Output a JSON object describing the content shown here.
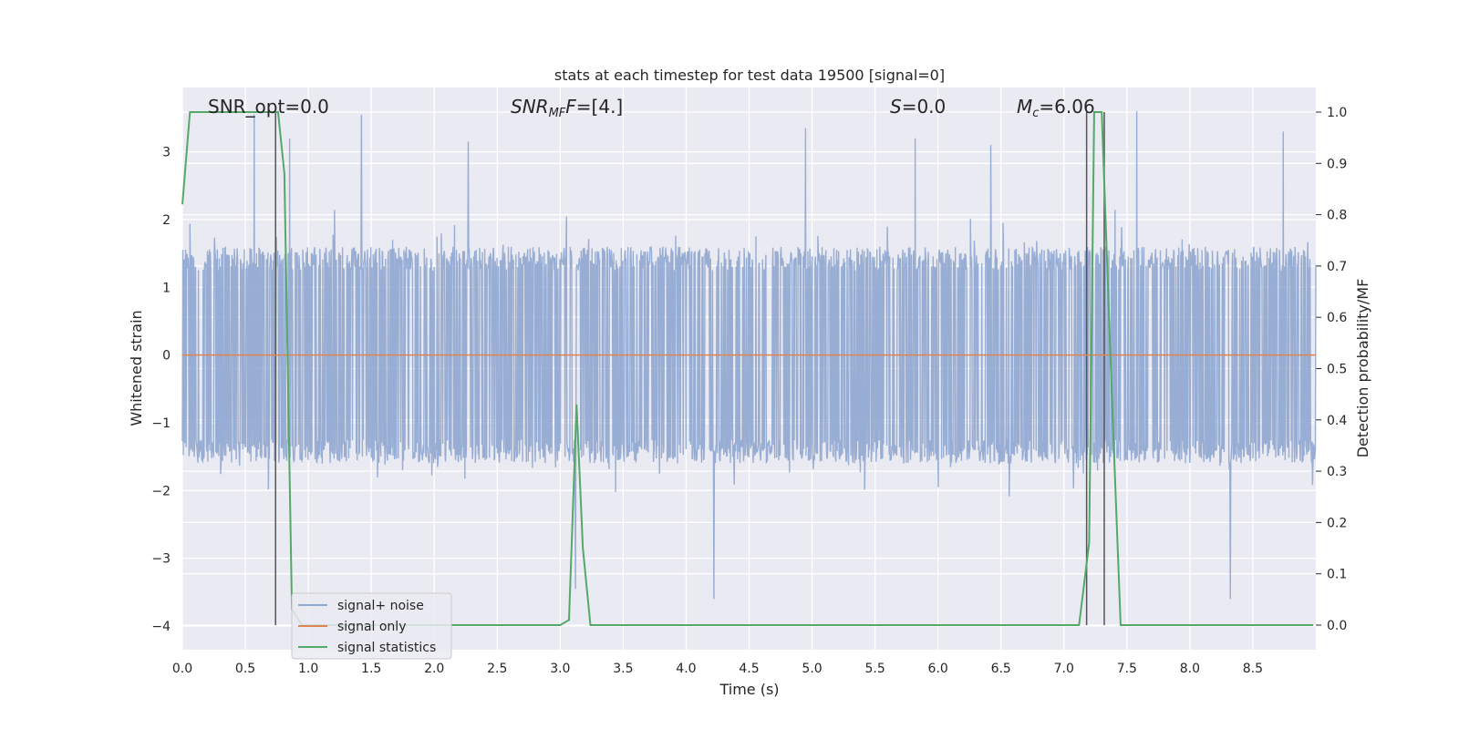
{
  "chart_data": {
    "type": "line",
    "title": "stats at each timestep for test data 19500 [signal=0]",
    "xlabel": "Time (s)",
    "ylabel_left": "Whitened strain",
    "ylabel_right": "Detection probability/MF",
    "xlim": [
      0.0,
      9.0
    ],
    "ylim_left": [
      -4.35,
      3.95
    ],
    "ylim_right": [
      -0.048,
      1.048
    ],
    "x_ticks": [
      "0.0",
      "0.5",
      "1.0",
      "1.5",
      "2.0",
      "2.5",
      "3.0",
      "3.5",
      "4.0",
      "4.5",
      "5.0",
      "5.5",
      "6.0",
      "6.5",
      "7.0",
      "7.5",
      "8.0",
      "8.5"
    ],
    "y_ticks_left": [
      "3",
      "2",
      "1",
      "0",
      "−1",
      "−2",
      "−3",
      "−4"
    ],
    "y_ticks_right": [
      "1.0",
      "0.9",
      "0.8",
      "0.7",
      "0.6",
      "0.5",
      "0.4",
      "0.3",
      "0.2",
      "0.1",
      "0.0"
    ],
    "grid": true,
    "legend_placement": "lower-left",
    "annotations": {
      "snr_opt": "SNR_opt=0.0",
      "snr_mf_main": "SNR",
      "snr_mf_sub": "MF",
      "snr_mf_val": "=[4.]",
      "s_main": "S",
      "s_val": "=0.0",
      "mc_main": "M",
      "mc_sub": "c",
      "mc_val": "=6.06"
    },
    "series": [
      {
        "name": "signal+ noise",
        "color": "#8fa6cf",
        "axis": "left",
        "envelope_note": "dense noise trace, approx range -3.6 to 3.6",
        "peaks_x": [
          0.57,
          0.85,
          1.42,
          2.27,
          3.12,
          4.22,
          4.95,
          5.82,
          6.42,
          7.58,
          8.32,
          8.74
        ],
        "peaks_y": [
          3.55,
          3.2,
          3.55,
          3.15,
          -3.45,
          -3.6,
          3.35,
          3.2,
          3.1,
          3.6,
          -3.6,
          3.3
        ]
      },
      {
        "name": "signal only",
        "color": "#dd8452",
        "axis": "left",
        "x": [
          0.0,
          9.0
        ],
        "y": [
          0.0,
          0.0
        ]
      },
      {
        "name": "signal statistics",
        "color": "#55a868",
        "axis": "right",
        "x": [
          0.0,
          0.06,
          0.12,
          0.5,
          0.72,
          0.76,
          0.81,
          0.87,
          0.95,
          1.1,
          3.0,
          3.07,
          3.13,
          3.18,
          3.24,
          3.6,
          7.12,
          7.2,
          7.24,
          7.3,
          7.38,
          7.45,
          7.6,
          8.98
        ],
        "y": [
          0.82,
          1.0,
          1.0,
          1.0,
          1.0,
          1.0,
          0.88,
          0.03,
          0.0,
          0.0,
          0.0,
          0.01,
          0.43,
          0.15,
          0.0,
          0.0,
          0.0,
          0.16,
          1.0,
          1.0,
          0.45,
          0.0,
          0.0,
          0.0
        ]
      }
    ],
    "vertical_markers_x": [
      0.74,
      7.18,
      7.32
    ],
    "vertical_marker_color": "#555555"
  },
  "legend": {
    "items": [
      {
        "label": "signal+ noise",
        "color": "#8fa6cf"
      },
      {
        "label": "signal only",
        "color": "#dd8452"
      },
      {
        "label": "signal statistics",
        "color": "#55a868"
      }
    ]
  }
}
